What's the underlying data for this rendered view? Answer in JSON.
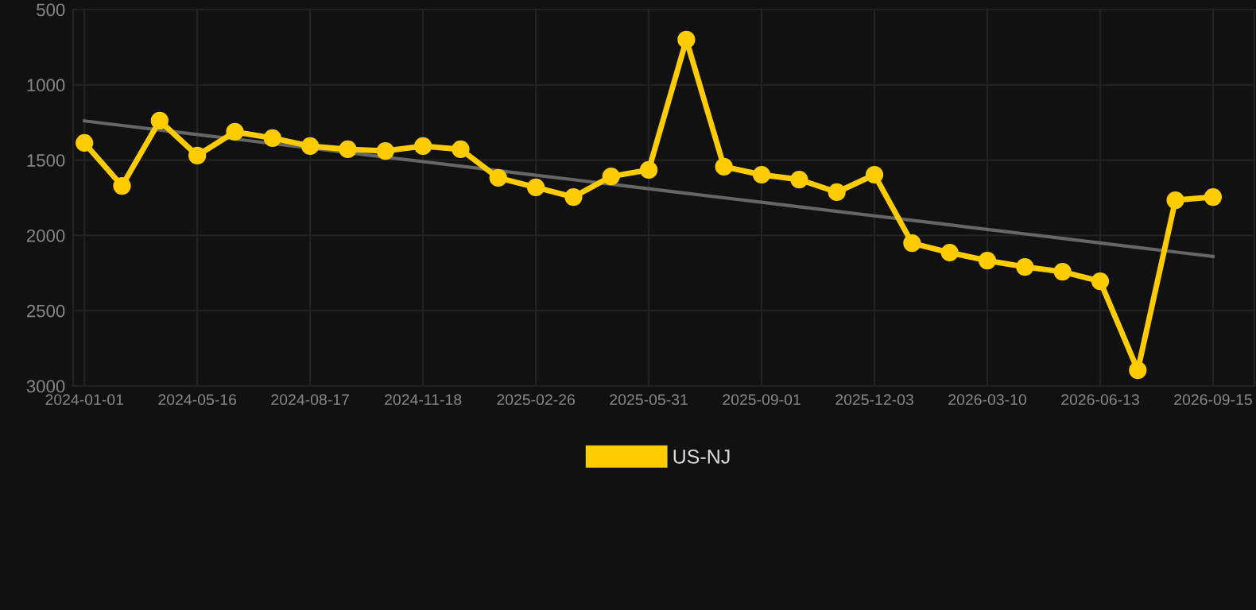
{
  "chart_data": {
    "type": "line",
    "categories": [
      "2024-01-01",
      null,
      null,
      "2024-05-16",
      null,
      null,
      "2024-08-17",
      null,
      null,
      "2024-11-18",
      null,
      null,
      "2025-02-26",
      null,
      null,
      "2025-05-31",
      null,
      null,
      "2025-09-01",
      null,
      null,
      "2025-12-03",
      null,
      null,
      "2026-03-10",
      null,
      null,
      "2026-06-13",
      null,
      null,
      "2026-09-15"
    ],
    "series": [
      {
        "name": "US-NJ",
        "color": "#ffcc00",
        "marker": "circle",
        "values": [
          1386,
          1671,
          1238,
          1470,
          1312,
          1354,
          1407,
          1428,
          1439,
          1407,
          1428,
          1618,
          1681,
          1745,
          1608,
          1565,
          700,
          1544,
          1597,
          1629,
          1713,
          1597,
          2051,
          2114,
          2167,
          2209,
          2241,
          2304,
          2895,
          1766,
          1745
        ]
      },
      {
        "type": "line",
        "color": "#666666",
        "marker": "none",
        "values": [
          1240,
          1270,
          1300,
          1330,
          1360,
          1390,
          1420,
          1450,
          1480,
          1510,
          1540,
          1570,
          1600,
          1630,
          1660,
          1690,
          1720,
          1750,
          1780,
          1810,
          1840,
          1870,
          1900,
          1930,
          1960,
          1990,
          2020,
          2050,
          2080,
          2110,
          2140
        ]
      }
    ],
    "ylim": [
      3000,
      500
    ],
    "yticks": [
      500,
      1000,
      1500,
      2000,
      2500,
      3000
    ],
    "grid": true,
    "legend": "bottom",
    "line_style": "solid"
  }
}
